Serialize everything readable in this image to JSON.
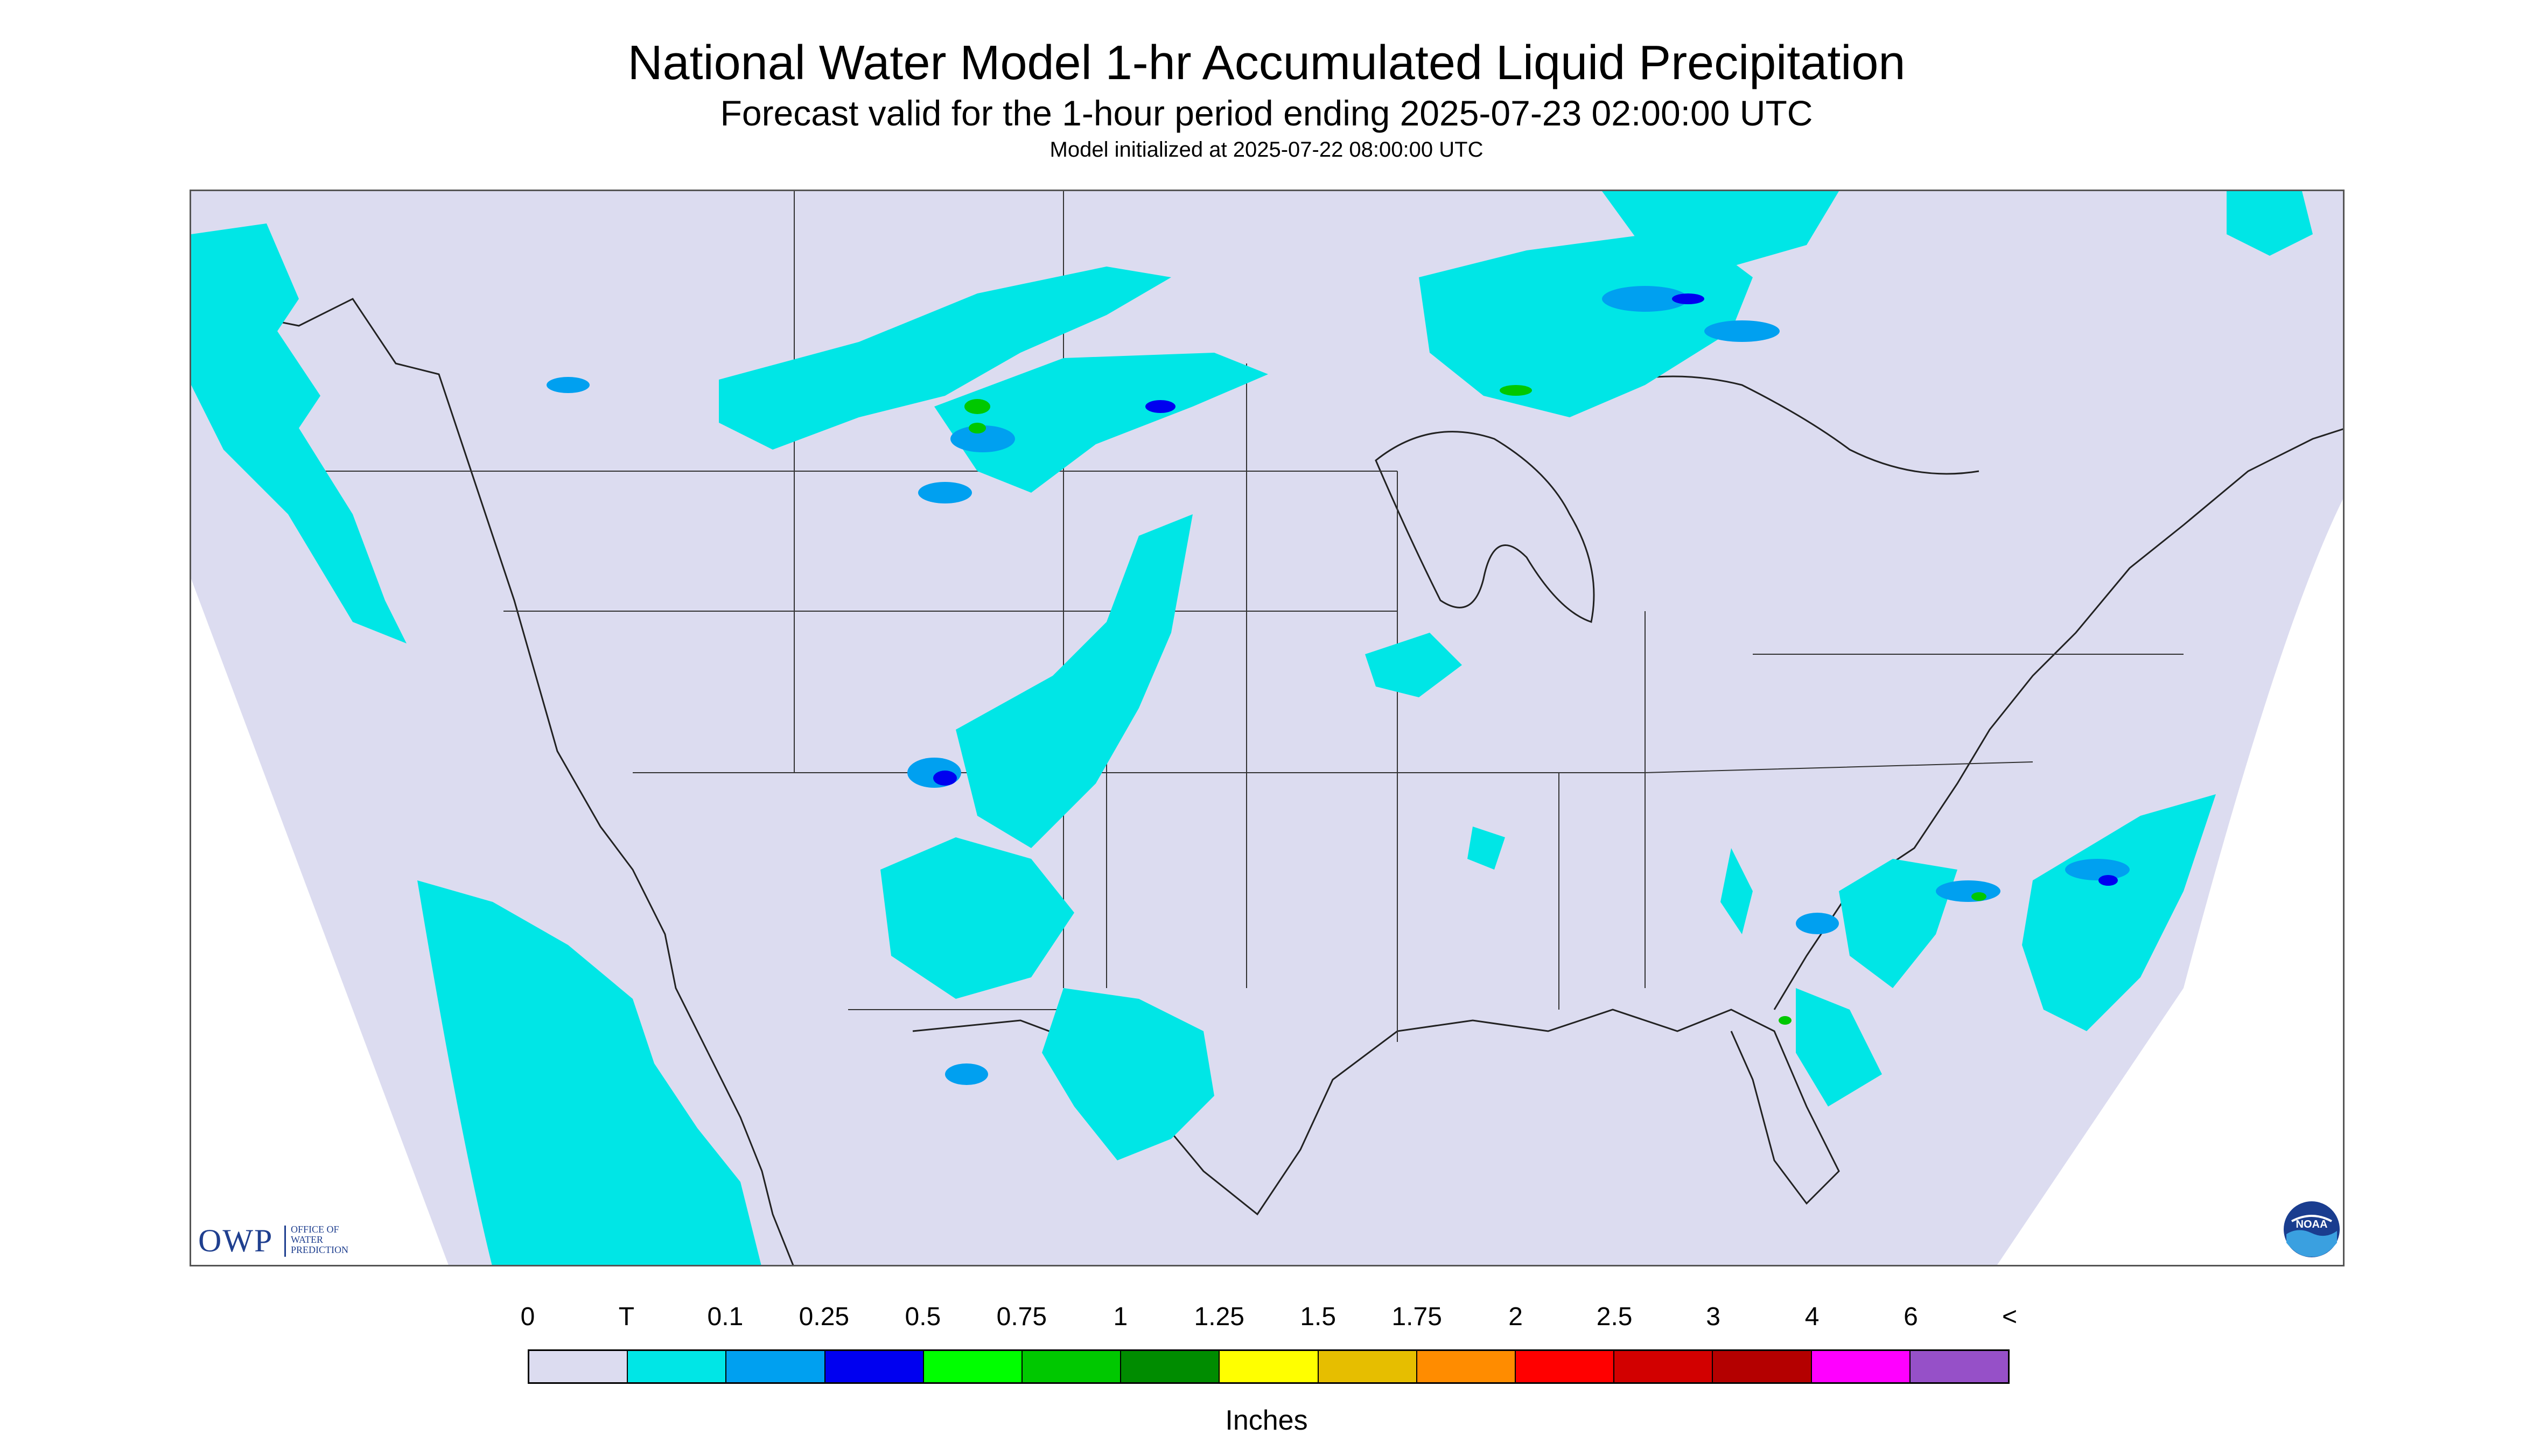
{
  "title": "National Water Model 1-hr Accumulated Liquid Precipitation",
  "subtitle": "Forecast valid for the 1-hour period ending 2025-07-23 02:00:00 UTC",
  "init_line": "Model initialized at 2025-07-22 08:00:00 UTC",
  "owp_logo": {
    "acronym": "OWP",
    "name_lines": [
      "OFFICE OF",
      "WATER",
      "PREDICTION"
    ]
  },
  "noaa_logo": "NOAA",
  "map": {
    "region": "Contiguous United States",
    "background_color": "#dcdcf0",
    "border_color": "#222222"
  },
  "legend": {
    "unit_label": "Inches",
    "tick_labels": [
      "0",
      "T",
      "0.1",
      "0.25",
      "0.5",
      "0.75",
      "1",
      "1.25",
      "1.5",
      "1.75",
      "2",
      "2.5",
      "3",
      "4",
      "6",
      "<"
    ],
    "colors": [
      "#dcdcf0",
      "#00e6e6",
      "#00a0f0",
      "#0000f0",
      "#00ff00",
      "#00c800",
      "#008c00",
      "#ffff00",
      "#e6be00",
      "#ff8c00",
      "#ff0000",
      "#d20000",
      "#b40000",
      "#ff00ff",
      "#9650c8"
    ]
  }
}
